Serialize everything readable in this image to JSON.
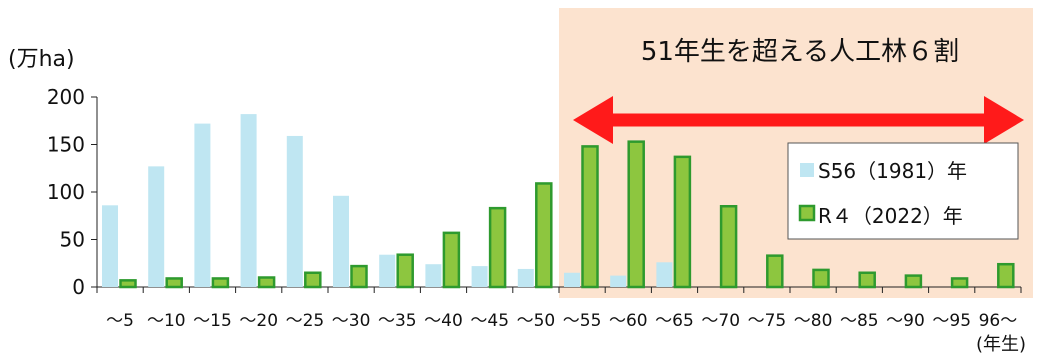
{
  "chart_data": {
    "type": "bar",
    "title": "",
    "ylabel": "(万ha)",
    "xlabel": "(年生)",
    "ylim": [
      0,
      200
    ],
    "yticks": [
      0,
      50,
      100,
      150,
      200
    ],
    "categories": [
      "～5",
      "～10",
      "～15",
      "～20",
      "～25",
      "～30",
      "～35",
      "～40",
      "～45",
      "～50",
      "～55",
      "～60",
      "～65",
      "～70",
      "～75",
      "～80",
      "～85",
      "～90",
      "～95",
      "96～"
    ],
    "series": [
      {
        "name": "S56（1981）年",
        "color": "#bfe6f2",
        "values": [
          86,
          127,
          172,
          182,
          159,
          96,
          34,
          24,
          22,
          19,
          15,
          12,
          26,
          0,
          0,
          0,
          0,
          0,
          0,
          0
        ]
      },
      {
        "name": "R４（2022）年",
        "color": "#8dc63f",
        "stroke": "#2e9a2e",
        "values": [
          7,
          9,
          9,
          10,
          15,
          22,
          34,
          57,
          83,
          109,
          148,
          153,
          137,
          85,
          33,
          18,
          15,
          12,
          9,
          24
        ]
      }
    ],
    "grid": false,
    "legend": "right",
    "annotation": {
      "text": "51年生を超える人工林６割",
      "from_category": "～55",
      "to_category": "96～",
      "band_color": "#fce3cf",
      "arrow_color": "#ff1a1a"
    }
  }
}
